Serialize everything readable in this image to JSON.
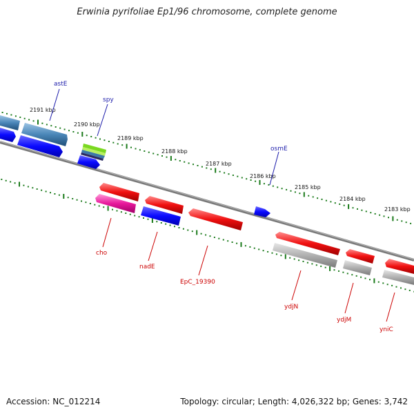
{
  "title": "Erwinia pyrifoliae Ep1/96 chromosome, complete genome",
  "footer": {
    "accession": "Accession: NC_012214",
    "topology": "Topology: circular; Length: 4,026,322 bp; Genes: 3,742"
  },
  "colors": {
    "tick": "#1a7a1a",
    "backbone": "#7a7a7a",
    "forward_label": "#1a1aaa",
    "reverse_label": "#cc0000",
    "blue_gene": "#0a0aff",
    "steel_gene": "#3d78a8",
    "red_gene": "#f01010",
    "pink_gene": "#e8189c",
    "gray_gene": "#a8a8a8"
  },
  "tick_labels": [
    "2191 kbp",
    "2190 kbp",
    "2189 kbp",
    "2188 kbp",
    "2187 kbp",
    "2186 kbp",
    "2185 kbp",
    "2184 kbp",
    "2183 kbp"
  ],
  "gene_labels": {
    "astE": "astE",
    "spy": "spy",
    "osmE": "osmE",
    "cho": "cho",
    "nadE": "nadE",
    "EpC_19390": "EpC_19390",
    "ydjN": "ydjN",
    "ydjM": "ydjM",
    "yniC": "yniC"
  }
}
